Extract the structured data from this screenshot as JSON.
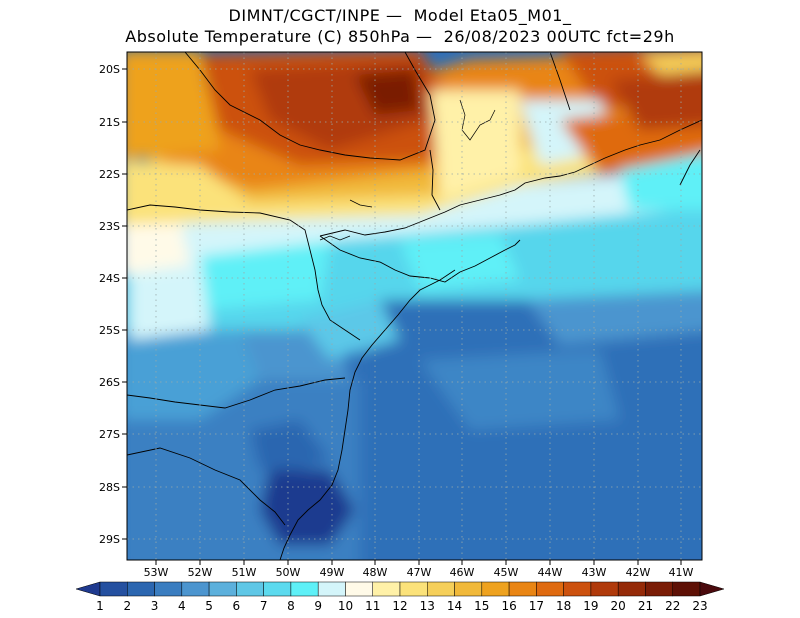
{
  "header": {
    "line1": "DIMNT/CGCT/INPE —  Model Eta05_M01_",
    "line2": "Absolute Temperature (C) 850hPa —  26/08/2023 00UTC fct=29h"
  },
  "map": {
    "lat_labels": [
      "20S",
      "21S",
      "22S",
      "23S",
      "24S",
      "25S",
      "26S",
      "27S",
      "28S",
      "29S"
    ],
    "lon_labels": [
      "53W",
      "52W",
      "51W",
      "50W",
      "49W",
      "48W",
      "47W",
      "46W",
      "45W",
      "44W",
      "43W",
      "42W",
      "41W"
    ]
  },
  "colorbar": {
    "labels": [
      "1",
      "2",
      "3",
      "4",
      "5",
      "6",
      "7",
      "8",
      "9",
      "10",
      "11",
      "12",
      "13",
      "14",
      "15",
      "16",
      "17",
      "18",
      "19",
      "20",
      "21",
      "22",
      "23"
    ],
    "colors": [
      "#1f3a8f",
      "#2450a0",
      "#2b66b0",
      "#3a7dc0",
      "#4c95cf",
      "#5cb0dc",
      "#5fc7e6",
      "#5cdaee",
      "#5ef0f7",
      "#d4f5fa",
      "#fffae8",
      "#fff1a8",
      "#fbe27a",
      "#f5cf5a",
      "#f1b93a",
      "#eea21f",
      "#e98514",
      "#df6a10",
      "#cc510e",
      "#b03a0b",
      "#952a08",
      "#7a1c06",
      "#5e1005",
      "#4a0a0d"
    ]
  }
}
